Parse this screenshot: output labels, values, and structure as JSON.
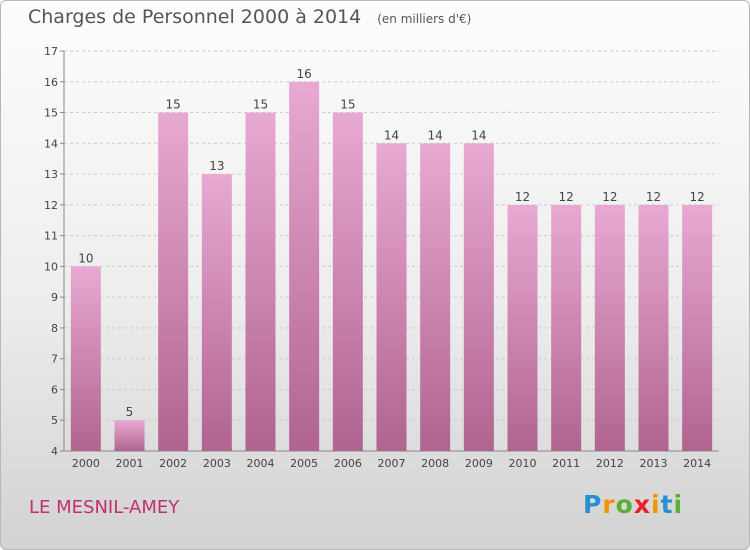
{
  "title": "Charges de Personnel 2000 à 2014",
  "subtitle": "(en milliers d'€)",
  "location": "LE MESNIL-AMEY",
  "brand": {
    "text": "Proxiti",
    "letters": [
      "P",
      "r",
      "o",
      "x",
      "i",
      "t",
      "i"
    ],
    "colors": [
      "#2a8fd0",
      "#f29400",
      "#5ab030",
      "#e8202a",
      "#f29400",
      "#2a8fd0",
      "#5ab030"
    ]
  },
  "colors": {
    "bar_top": "#e8a9d2",
    "bar_bottom": "#b0648f",
    "label": "#444444",
    "axis": "#888888"
  },
  "chart_data": {
    "type": "bar",
    "categories": [
      "2000",
      "2001",
      "2002",
      "2003",
      "2004",
      "2005",
      "2006",
      "2007",
      "2008",
      "2009",
      "2010",
      "2011",
      "2012",
      "2013",
      "2014"
    ],
    "values": [
      10,
      5,
      15,
      13,
      15,
      16,
      15,
      14,
      14,
      14,
      12,
      12,
      12,
      12,
      12
    ],
    "ylim": [
      4,
      17
    ],
    "yticks": [
      4,
      5,
      6,
      7,
      8,
      9,
      10,
      11,
      12,
      13,
      14,
      15,
      16,
      17
    ],
    "grid": true
  }
}
